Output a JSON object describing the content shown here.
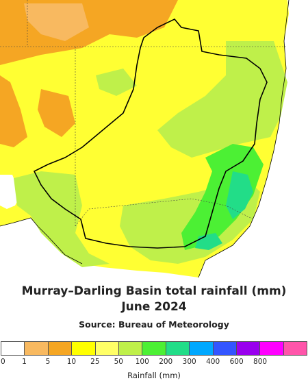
{
  "title_line1": "Murray–Darling Basin total rainfall (mm)",
  "title_line2": "June 2024",
  "source": "Source: Bureau of Meteorology",
  "legend": {
    "title": "Rainfall (mm)",
    "ticks": [
      "0",
      "1",
      "5",
      "10",
      "25",
      "50",
      "100",
      "200",
      "300",
      "400",
      "600",
      "800"
    ],
    "colors": [
      "#ffffff",
      "#f8b960",
      "#f5a623",
      "#ffff00",
      "#ffff66",
      "#bff04a",
      "#4cf034",
      "#22dd88",
      "#00a8ff",
      "#3355ff",
      "#9900ee",
      "#ff00ff",
      "#ff55aa"
    ]
  },
  "map": {
    "ocean_color": "#ffffff",
    "boundary_color": "#000000"
  }
}
